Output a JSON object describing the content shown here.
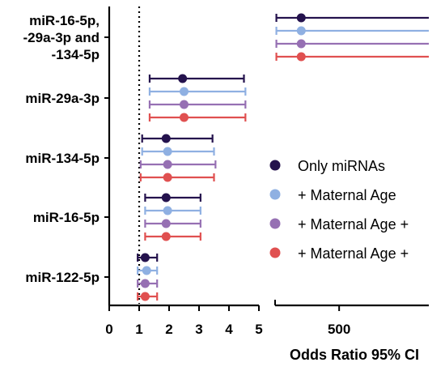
{
  "chart_data": {
    "type": "forest",
    "xlabel": "Odds Ratio 95% CI",
    "reference_line": 1,
    "segments": [
      {
        "xlim": [
          0,
          5
        ],
        "ticks": [
          0,
          1,
          2,
          3,
          4,
          5
        ]
      },
      {
        "xlim": [
          250,
          850
        ],
        "ticks": [
          500
        ],
        "tick_labels": [
          "500"
        ]
      }
    ],
    "categories": [
      [
        "miR-16-5p,",
        "-29a-3p and",
        "-134-5p"
      ],
      [
        "miR-29a-3p"
      ],
      [
        "miR-134-5p"
      ],
      [
        "miR-16-5p"
      ],
      [
        "miR-122-5p"
      ]
    ],
    "series": [
      {
        "name": "Only miRNAs",
        "color": "#24124d",
        "or": [
          352,
          2.45,
          1.9,
          1.9,
          1.2
        ],
        "lower": [
          255,
          1.35,
          1.1,
          1.2,
          0.95
        ],
        "upper": [
          850,
          4.5,
          3.45,
          3.05,
          1.6
        ]
      },
      {
        "name": "+ Maternal Age",
        "color": "#8fb0e2",
        "or": [
          352,
          2.5,
          1.95,
          1.95,
          1.25
        ],
        "lower": [
          255,
          1.35,
          1.1,
          1.2,
          0.95
        ],
        "upper": [
          850,
          4.55,
          3.5,
          3.05,
          1.6
        ]
      },
      {
        "name": "+ Maternal Age +",
        "color": "#9670b3",
        "or": [
          352,
          2.5,
          1.95,
          1.9,
          1.2
        ],
        "lower": [
          255,
          1.35,
          1.05,
          1.2,
          0.95
        ],
        "upper": [
          850,
          4.55,
          3.55,
          3.05,
          1.6
        ]
      },
      {
        "name": "+ Maternal Age +",
        "color": "#e05050",
        "or": [
          352,
          2.5,
          1.95,
          1.9,
          1.2
        ],
        "lower": [
          255,
          1.35,
          1.05,
          1.2,
          0.95
        ],
        "upper": [
          850,
          4.55,
          3.5,
          3.05,
          1.6
        ]
      }
    ],
    "legend_position": "right-middle"
  }
}
